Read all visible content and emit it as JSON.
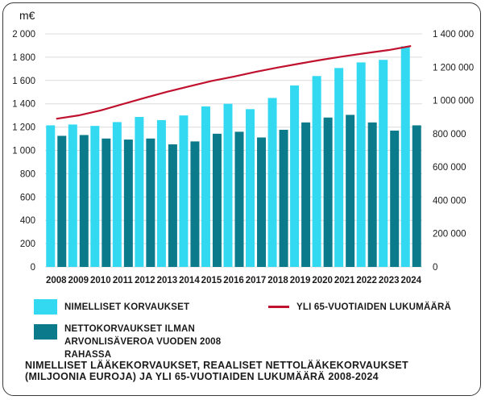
{
  "chart_data": {
    "type": "bar",
    "left_axis_unit": "m€",
    "categories": [
      "2008",
      "2009",
      "2010",
      "2011",
      "2012",
      "2013",
      "2014",
      "2015",
      "2016",
      "2017",
      "2018",
      "2019",
      "2020",
      "2021",
      "2022",
      "2023",
      "2024"
    ],
    "series": [
      {
        "name": "NIMELLISET KORVAUKSET",
        "type": "bar",
        "axis": "left",
        "color": "#33d9f0",
        "values": [
          1215,
          1222,
          1210,
          1243,
          1287,
          1260,
          1300,
          1377,
          1400,
          1354,
          1450,
          1557,
          1638,
          1707,
          1755,
          1777,
          1893
        ]
      },
      {
        "name": "NETTOKORVAUKSET ILMAN ARVONLISÄVEROA VUODEN 2008 RAHASSA",
        "type": "bar",
        "axis": "left",
        "color": "#0b7b8b",
        "values": [
          1125,
          1132,
          1102,
          1093,
          1102,
          1052,
          1077,
          1143,
          1160,
          1111,
          1177,
          1240,
          1282,
          1305,
          1240,
          1170,
          1215
        ]
      },
      {
        "name": "YLI 65-VUOTIAIDEN LUKUMÄÄRÄ",
        "type": "line",
        "axis": "right",
        "color": "#c0112f",
        "values": [
          890000,
          910000,
          940000,
          978000,
          1016000,
          1052000,
          1085000,
          1117000,
          1143000,
          1172000,
          1198000,
          1222000,
          1245000,
          1266000,
          1285000,
          1303000,
          1327000
        ]
      }
    ],
    "ylim_left": [
      0,
      2000
    ],
    "yticks_left": [
      "0",
      "200",
      "400",
      "600",
      "800",
      "1 000",
      "1 200",
      "1 400",
      "1 600",
      "1 800",
      "2 000"
    ],
    "ylim_right": [
      0,
      1400000
    ],
    "yticks_right": [
      "0",
      "200 000",
      "400 000",
      "600 000",
      "800 000",
      "1 000 000",
      "1 200 000",
      "1 400 000"
    ],
    "grid": true,
    "legend_position": "bottom"
  },
  "caption": {
    "line1": "NIMELLISET LÄÄKEKORVAUKSET, REAALISET NETTOLÄÄKEKORVAUKSET",
    "line2": "(MILJOONIA EUROJA) JA YLI 65-VUOTIAIDEN LUKUMÄÄRÄ 2008-2024"
  }
}
